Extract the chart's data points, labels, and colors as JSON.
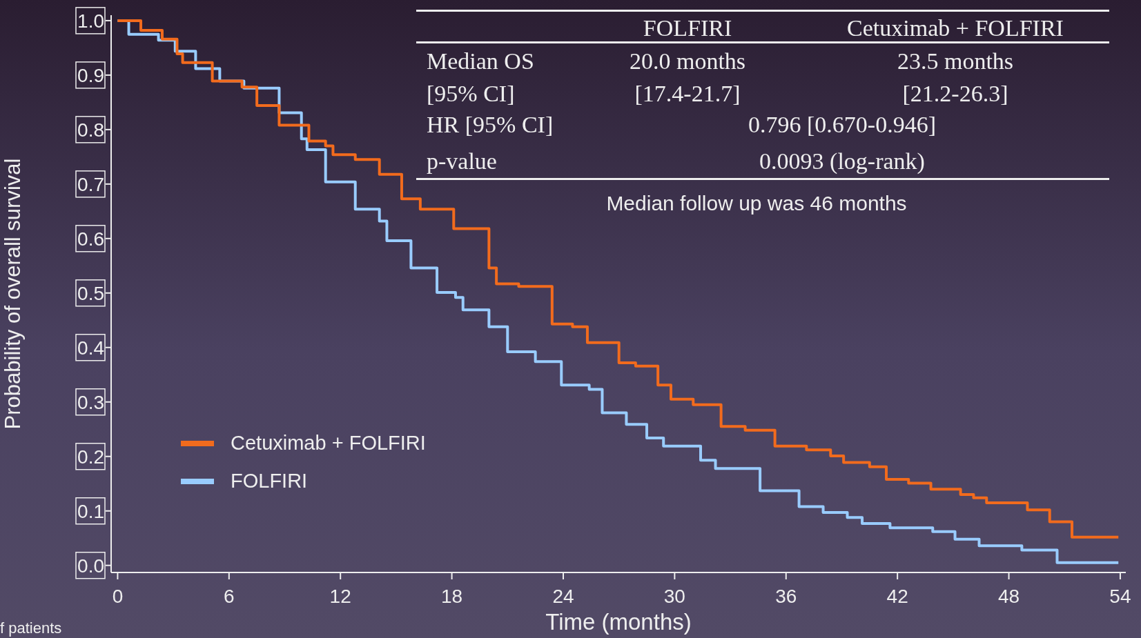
{
  "chart_data": {
    "type": "step",
    "xlabel": "Time (months)",
    "ylabel": "Probability of overall survival",
    "xlim": [
      -0.35,
      54.3
    ],
    "ylim": [
      -0.013,
      1.01
    ],
    "xticks": [
      0,
      6,
      12,
      18,
      24,
      30,
      36,
      42,
      48,
      54
    ],
    "yticks": [
      {
        "value": 0,
        "label": "0.0"
      },
      {
        "value": 0.1,
        "label": "0.1"
      },
      {
        "value": 0.2,
        "label": "0.2"
      },
      {
        "value": 0.3,
        "label": "0.3"
      },
      {
        "value": 0.4,
        "label": "0.4"
      },
      {
        "value": 0.5,
        "label": "0.5"
      },
      {
        "value": 0.6,
        "label": "0.6"
      },
      {
        "value": 0.7,
        "label": "0.7"
      },
      {
        "value": 0.8,
        "label": "0.8"
      },
      {
        "value": 0.9,
        "label": "0.9"
      },
      {
        "value": 1,
        "label": "1.0"
      }
    ],
    "grid": false,
    "legend": "bottom left",
    "series": [
      {
        "name": "Cetuximab + FOLFIRI",
        "color": "#f26b1d",
        "x": [
          0,
          1.25,
          2.4,
          3.2,
          3.5,
          5.1,
          6.7,
          7.5,
          8.7,
          10.3,
          11.2,
          11.6,
          12.8,
          14.1,
          15.3,
          16.3,
          18.1,
          20.0,
          20.4,
          21.6,
          23.4,
          24.5,
          25.3,
          27.0,
          27.9,
          29.1,
          29.8,
          31.0,
          32.5,
          33.8,
          35.4,
          37.1,
          38.4,
          39.1,
          40.5,
          41.4,
          42.6,
          43.8,
          45.4,
          46.1,
          46.8,
          49.0,
          50.2,
          51.4,
          53.9
        ],
        "values": [
          1.0,
          0.982,
          0.966,
          0.939,
          0.923,
          0.889,
          0.878,
          0.844,
          0.808,
          0.779,
          0.77,
          0.754,
          0.745,
          0.718,
          0.673,
          0.654,
          0.618,
          0.546,
          0.517,
          0.512,
          0.443,
          0.438,
          0.409,
          0.372,
          0.366,
          0.331,
          0.305,
          0.295,
          0.255,
          0.248,
          0.219,
          0.212,
          0.201,
          0.189,
          0.181,
          0.158,
          0.151,
          0.14,
          0.13,
          0.124,
          0.115,
          0.102,
          0.08,
          0.052,
          0.052
        ]
      },
      {
        "name": "FOLFIRI",
        "color": "#99ccff",
        "x": [
          0,
          0.6,
          2.2,
          3.1,
          4.2,
          5.5,
          6.8,
          8.7,
          9.9,
          10.2,
          11.2,
          12.8,
          14.1,
          14.5,
          15.8,
          17.2,
          18.2,
          18.6,
          20.0,
          21.0,
          22.5,
          23.9,
          25.4,
          26.1,
          27.4,
          28.5,
          29.4,
          31.4,
          32.2,
          34.6,
          36.7,
          38.0,
          39.3,
          40.1,
          41.6,
          43.9,
          45.1,
          46.4,
          48.7,
          50.6,
          53.9
        ],
        "values": [
          1.0,
          0.975,
          0.964,
          0.944,
          0.912,
          0.889,
          0.876,
          0.831,
          0.783,
          0.763,
          0.704,
          0.654,
          0.632,
          0.596,
          0.546,
          0.501,
          0.492,
          0.469,
          0.438,
          0.392,
          0.374,
          0.331,
          0.323,
          0.28,
          0.259,
          0.234,
          0.219,
          0.193,
          0.178,
          0.137,
          0.108,
          0.097,
          0.088,
          0.077,
          0.069,
          0.062,
          0.048,
          0.036,
          0.028,
          0.005,
          0.005
        ]
      }
    ],
    "annotations": [
      "FOLFIRI",
      "Cetuximab + FOLFIRI",
      "Median OS",
      "20.0 months",
      "23.5 months",
      "[95% CI]",
      "[17.4-21.7]",
      "[21.2-26.3]",
      "HR [95% CI]",
      "0.796 [0.670-0.946]",
      "p-value",
      "0.0093 (log-rank)",
      "Median follow up was 46 months",
      "f patients"
    ]
  }
}
